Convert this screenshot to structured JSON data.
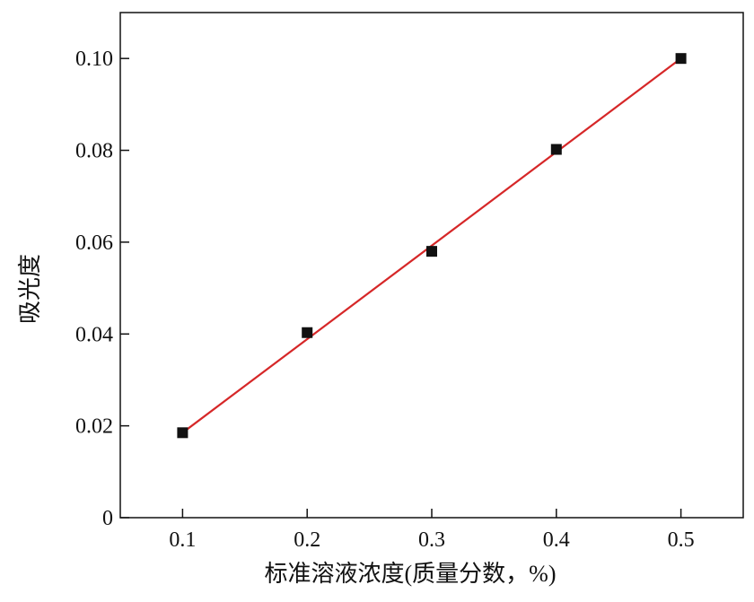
{
  "chart_data": {
    "type": "scatter",
    "title": "",
    "xlabel": "标准溶液浓度(质量分数，%)",
    "ylabel": "吸光度",
    "xlim": [
      0.05,
      0.55
    ],
    "ylim": [
      0,
      0.11
    ],
    "xticks": [
      0.1,
      0.2,
      0.3,
      0.4,
      0.5
    ],
    "yticks": [
      0,
      0.02,
      0.04,
      0.06,
      0.08,
      0.1
    ],
    "xtick_labels": [
      "0.1",
      "0.2",
      "0.3",
      "0.4",
      "0.5"
    ],
    "ytick_labels": [
      "0",
      "0.02",
      "0.04",
      "0.06",
      "0.08",
      "0.10"
    ],
    "grid": false,
    "legend": "none",
    "series": [
      {
        "marker": "square",
        "color": "#111111",
        "x": [
          0.1,
          0.2,
          0.3,
          0.4,
          0.5
        ],
        "y": [
          0.0185,
          0.0403,
          0.058,
          0.0802,
          0.1
        ]
      }
    ],
    "fit_line": {
      "color": "#d62728",
      "x": [
        0.1,
        0.5
      ],
      "y": [
        0.0185,
        0.1
      ]
    }
  }
}
